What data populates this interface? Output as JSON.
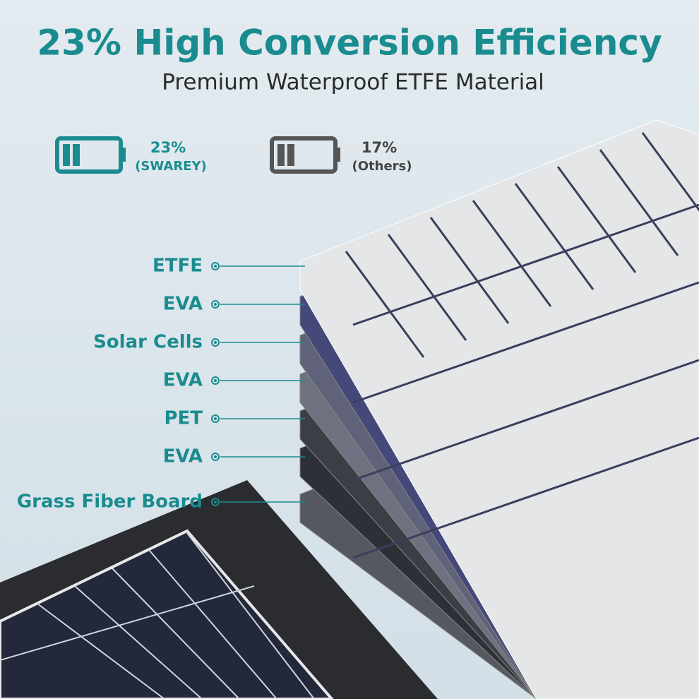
{
  "header": {
    "title": "23% High Conversion Efficiency",
    "subtitle": "Premium Waterproof ETFE Material"
  },
  "comparison": [
    {
      "value": "23%",
      "label": "(SWAREY)"
    },
    {
      "value": "17%",
      "label": "(Others)"
    }
  ],
  "layers": [
    "ETFE",
    "EVA",
    "Solar Cells",
    "EVA",
    "PET",
    "EVA",
    "Grass Fiber Board"
  ]
}
